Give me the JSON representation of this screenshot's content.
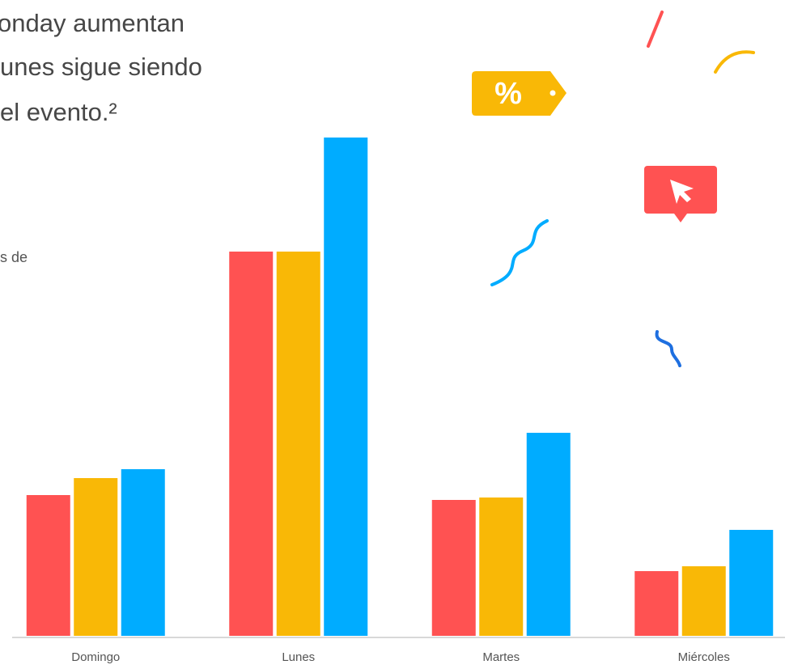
{
  "chart_data": {
    "type": "bar",
    "title_lines": [
      "onday aumentan",
      "unes sigue siendo",
      "el evento.²"
    ],
    "note": "s de",
    "categories": [
      "Domingo",
      "Lunes",
      "Martes",
      "Miércoles"
    ],
    "series": [
      {
        "color": "#ff5252",
        "values": [
          174,
          475,
          168,
          80
        ]
      },
      {
        "color": "#f9b806",
        "values": [
          195,
          475,
          171,
          86
        ]
      },
      {
        "color": "#00acff",
        "values": [
          206,
          616,
          251,
          131
        ]
      }
    ],
    "ylim": [
      0,
      640
    ]
  }
}
